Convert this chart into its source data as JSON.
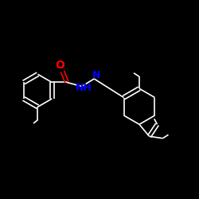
{
  "background": "#000000",
  "bond_color": "#ffffff",
  "N_color": "#0000ff",
  "O_color": "#ff0000",
  "bond_width": 1.2,
  "font_size_atom": 9,
  "fig_w": 2.5,
  "fig_h": 2.5,
  "dpi": 100,
  "xlim": [
    0.0,
    1.0
  ],
  "ylim": [
    0.0,
    1.0
  ]
}
